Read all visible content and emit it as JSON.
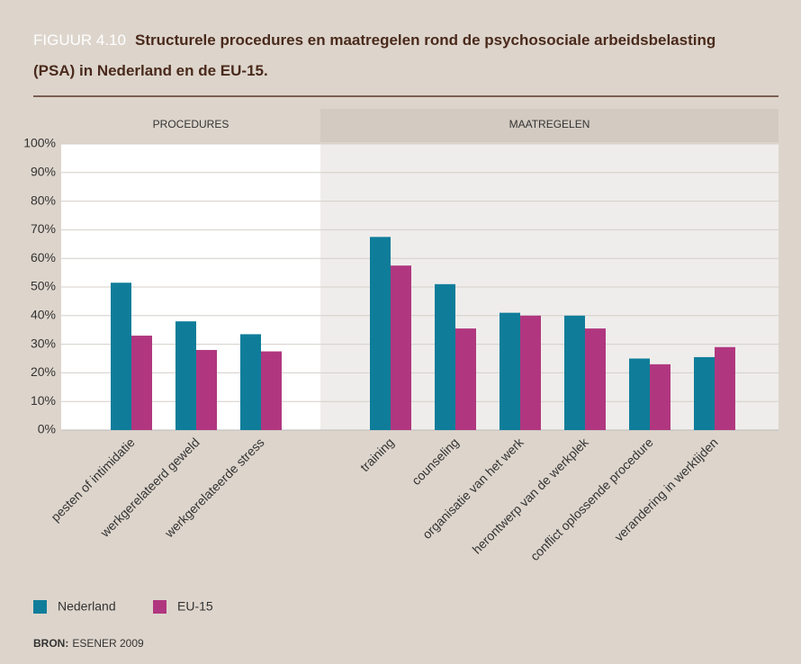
{
  "chart_data": {
    "type": "bar",
    "figure_label": "FIGUUR 4.10",
    "title": "Structurele procedures en maatregelen rond de psychosociale arbeidsbelasting (PSA) in Nederland en de EU-15.",
    "sections": [
      {
        "label": "PROCEDURES",
        "categories": [
          "pesten of intimidatie",
          "werkgerelateerd geweld",
          "werkgerelateerde stress"
        ]
      },
      {
        "label": "MAATREGELEN",
        "categories": [
          "training",
          "counseling",
          "organisatie van het werk",
          "herontwerp van de werkplek",
          "conflict oplossende procedure",
          "verandering in werktijden"
        ]
      }
    ],
    "series": [
      {
        "name": "Nederland",
        "color": "#0f7d9a",
        "values": [
          51.5,
          38,
          33.5,
          67.5,
          51,
          41,
          40,
          25,
          25.5
        ]
      },
      {
        "name": "EU-15",
        "color": "#b0377f",
        "values": [
          33,
          28,
          27.5,
          57.5,
          35.5,
          40,
          35.5,
          23,
          29
        ]
      }
    ],
    "ylim": [
      0,
      100
    ],
    "yticks": [
      {
        "value": 0,
        "label": "0%"
      },
      {
        "value": 10,
        "label": "10%"
      },
      {
        "value": 20,
        "label": "20%"
      },
      {
        "value": 30,
        "label": "30%"
      },
      {
        "value": 40,
        "label": "40%"
      },
      {
        "value": 50,
        "label": "50%"
      },
      {
        "value": 60,
        "label": "60%"
      },
      {
        "value": 70,
        "label": "70%"
      },
      {
        "value": 80,
        "label": "80%"
      },
      {
        "value": 90,
        "label": "90%"
      },
      {
        "value": 100,
        "label": "100%"
      }
    ],
    "grid": true,
    "source_label": "BRON:",
    "source": "ESENER 2009"
  }
}
